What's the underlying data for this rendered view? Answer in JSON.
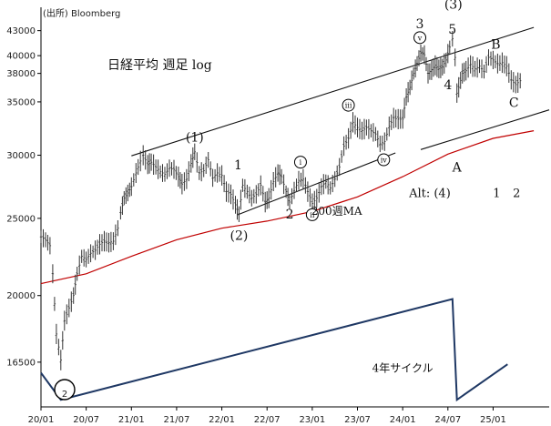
{
  "chart_data": {
    "type": "line",
    "source_note": "(出所) Bloomberg",
    "title": "日経平均 週足 log",
    "y_scale": "log",
    "ylim": [
      14500,
      46000
    ],
    "y_ticks": [
      16500,
      20000,
      25000,
      30000,
      35000,
      38000,
      40000,
      43000
    ],
    "x_ticks": [
      {
        "label": "20/01",
        "t": 2020.0
      },
      {
        "label": "20/07",
        "t": 2020.5
      },
      {
        "label": "21/01",
        "t": 2021.0
      },
      {
        "label": "21/07",
        "t": 2021.5
      },
      {
        "label": "22/01",
        "t": 2022.0
      },
      {
        "label": "22/07",
        "t": 2022.5
      },
      {
        "label": "23/01",
        "t": 2023.0
      },
      {
        "label": "23/07",
        "t": 2023.5
      },
      {
        "label": "24/01",
        "t": 2024.0
      },
      {
        "label": "24/07",
        "t": 2024.5
      },
      {
        "label": "25/01",
        "t": 2025.0
      }
    ],
    "xlim": [
      2020.0,
      2025.62
    ],
    "price_series": [
      [
        2020.0,
        23700
      ],
      [
        2020.05,
        23500
      ],
      [
        2020.1,
        23100
      ],
      [
        2020.13,
        21300
      ],
      [
        2020.17,
        17900
      ],
      [
        2020.22,
        16600
      ],
      [
        2020.26,
        18600
      ],
      [
        2020.31,
        19300
      ],
      [
        2020.36,
        20000
      ],
      [
        2020.4,
        21300
      ],
      [
        2020.45,
        22400
      ],
      [
        2020.5,
        22200
      ],
      [
        2020.55,
        22600
      ],
      [
        2020.6,
        22800
      ],
      [
        2020.65,
        23200
      ],
      [
        2020.7,
        23400
      ],
      [
        2020.75,
        23300
      ],
      [
        2020.8,
        23400
      ],
      [
        2020.85,
        24300
      ],
      [
        2020.88,
        25400
      ],
      [
        2020.92,
        26500
      ],
      [
        2020.96,
        26900
      ],
      [
        2021.0,
        27400
      ],
      [
        2021.05,
        28500
      ],
      [
        2021.1,
        29500
      ],
      [
        2021.13,
        30000
      ],
      [
        2021.18,
        29200
      ],
      [
        2021.22,
        29400
      ],
      [
        2021.27,
        29000
      ],
      [
        2021.32,
        28600
      ],
      [
        2021.37,
        28400
      ],
      [
        2021.42,
        28900
      ],
      [
        2021.47,
        28800
      ],
      [
        2021.52,
        28200
      ],
      [
        2021.56,
        27600
      ],
      [
        2021.61,
        28000
      ],
      [
        2021.66,
        29300
      ],
      [
        2021.7,
        30300
      ],
      [
        2021.75,
        28500
      ],
      [
        2021.8,
        28700
      ],
      [
        2021.85,
        29600
      ],
      [
        2021.9,
        28100
      ],
      [
        2021.95,
        28500
      ],
      [
        2022.0,
        28300
      ],
      [
        2022.05,
        27000
      ],
      [
        2022.1,
        26800
      ],
      [
        2022.15,
        26000
      ],
      [
        2022.19,
        25300
      ],
      [
        2022.23,
        27500
      ],
      [
        2022.28,
        27000
      ],
      [
        2022.33,
        26500
      ],
      [
        2022.38,
        26800
      ],
      [
        2022.43,
        27500
      ],
      [
        2022.48,
        26200
      ],
      [
        2022.52,
        26500
      ],
      [
        2022.57,
        27800
      ],
      [
        2022.62,
        28500
      ],
      [
        2022.66,
        28200
      ],
      [
        2022.71,
        27000
      ],
      [
        2022.75,
        26200
      ],
      [
        2022.8,
        27100
      ],
      [
        2022.85,
        27900
      ],
      [
        2022.9,
        28000
      ],
      [
        2022.95,
        27000
      ],
      [
        2023.0,
        26100
      ],
      [
        2023.05,
        26500
      ],
      [
        2023.1,
        27400
      ],
      [
        2023.15,
        27800
      ],
      [
        2023.2,
        27300
      ],
      [
        2023.25,
        28000
      ],
      [
        2023.3,
        29000
      ],
      [
        2023.35,
        30800
      ],
      [
        2023.4,
        31500
      ],
      [
        2023.45,
        33000
      ],
      [
        2023.5,
        32500
      ],
      [
        2023.55,
        32200
      ],
      [
        2023.6,
        32500
      ],
      [
        2023.65,
        32200
      ],
      [
        2023.7,
        31900
      ],
      [
        2023.75,
        31000
      ],
      [
        2023.8,
        31200
      ],
      [
        2023.85,
        32600
      ],
      [
        2023.9,
        33400
      ],
      [
        2023.95,
        33300
      ],
      [
        2024.0,
        33300
      ],
      [
        2024.04,
        35500
      ],
      [
        2024.08,
        36500
      ],
      [
        2024.12,
        38000
      ],
      [
        2024.16,
        39100
      ],
      [
        2024.2,
        40300
      ],
      [
        2024.24,
        40100
      ],
      [
        2024.28,
        38000
      ],
      [
        2024.32,
        38400
      ],
      [
        2024.36,
        38900
      ],
      [
        2024.4,
        38500
      ],
      [
        2024.44,
        38700
      ],
      [
        2024.48,
        39500
      ],
      [
        2024.52,
        41000
      ],
      [
        2024.55,
        42000
      ],
      [
        2024.58,
        39800
      ],
      [
        2024.6,
        35900
      ],
      [
        2024.62,
        36500
      ],
      [
        2024.66,
        38000
      ],
      [
        2024.7,
        38300
      ],
      [
        2024.75,
        39000
      ],
      [
        2024.8,
        38500
      ],
      [
        2024.85,
        38800
      ],
      [
        2024.9,
        38200
      ],
      [
        2024.95,
        39800
      ],
      [
        2025.0,
        39500
      ],
      [
        2025.05,
        39100
      ],
      [
        2025.1,
        39200
      ],
      [
        2025.15,
        38800
      ],
      [
        2025.2,
        37300
      ],
      [
        2025.25,
        36800
      ],
      [
        2025.3,
        37200
      ]
    ],
    "ma200": {
      "name": "200週MA",
      "color": "#c00000",
      "points": [
        [
          2020.0,
          20700
        ],
        [
          2020.5,
          21300
        ],
        [
          2021.0,
          22400
        ],
        [
          2021.5,
          23500
        ],
        [
          2022.0,
          24300
        ],
        [
          2022.5,
          24800
        ],
        [
          2023.0,
          25500
        ],
        [
          2023.5,
          26600
        ],
        [
          2024.0,
          28200
        ],
        [
          2024.5,
          30100
        ],
        [
          2025.0,
          31500
        ],
        [
          2025.45,
          32200
        ]
      ]
    },
    "trend_channel": {
      "upper": [
        [
          2021.0,
          29950
        ],
        [
          2025.45,
          43400
        ]
      ],
      "lower_long": [
        [
          2024.2,
          30500
        ],
        [
          2025.62,
          34200
        ]
      ],
      "lower_short": [
        [
          2022.17,
          25250
        ],
        [
          2023.92,
          30200
        ]
      ],
      "color": "#111111"
    },
    "cycle_line": {
      "name": "4年サイクル",
      "color": "#1f3864",
      "points": [
        [
          2020.0,
          16000
        ],
        [
          2020.22,
          14800
        ],
        [
          2024.55,
          19800
        ],
        [
          2024.6,
          14800
        ],
        [
          2025.16,
          16400
        ]
      ]
    },
    "wave_labels": [
      {
        "text": "(1)",
        "t": 2021.7,
        "v": 31200,
        "style": "plain"
      },
      {
        "text": "1",
        "t": 2022.18,
        "v": 28800,
        "style": "plain"
      },
      {
        "text": "(2)",
        "t": 2022.19,
        "v": 23500,
        "style": "plain"
      },
      {
        "text": "i",
        "t": 2022.87,
        "v": 29100,
        "style": "circle"
      },
      {
        "text": "2",
        "t": 2022.75,
        "v": 25000,
        "style": "plain"
      },
      {
        "text": "ii",
        "t": 2023.0,
        "v": 25000,
        "style": "circle"
      },
      {
        "text": "iii",
        "t": 2023.4,
        "v": 34300,
        "style": "circle"
      },
      {
        "text": "iv",
        "t": 2023.79,
        "v": 29300,
        "style": "circle"
      },
      {
        "text": "3",
        "t": 2024.19,
        "v": 43300,
        "style": "plain"
      },
      {
        "text": "v",
        "t": 2024.19,
        "v": 41700,
        "style": "circle"
      },
      {
        "text": "(3)",
        "t": 2024.56,
        "v": 45800,
        "style": "plain"
      },
      {
        "text": "5",
        "t": 2024.55,
        "v": 42600,
        "style": "plain"
      },
      {
        "text": "4",
        "t": 2024.5,
        "v": 36300,
        "style": "plain"
      },
      {
        "text": "A",
        "t": 2024.6,
        "v": 28600,
        "style": "plain"
      },
      {
        "text": "B",
        "t": 2025.03,
        "v": 40800,
        "style": "plain"
      },
      {
        "text": "C",
        "t": 2025.23,
        "v": 34500,
        "style": "plain"
      }
    ],
    "annotations": [
      {
        "text": "Alt: (4)",
        "t": 2024.3,
        "v": 26600
      },
      {
        "text": "1",
        "t": 2025.04,
        "v": 26600
      },
      {
        "text": "2",
        "t": 2025.26,
        "v": 26600
      }
    ],
    "bottom_labels": {
      "big_two": "2"
    }
  }
}
